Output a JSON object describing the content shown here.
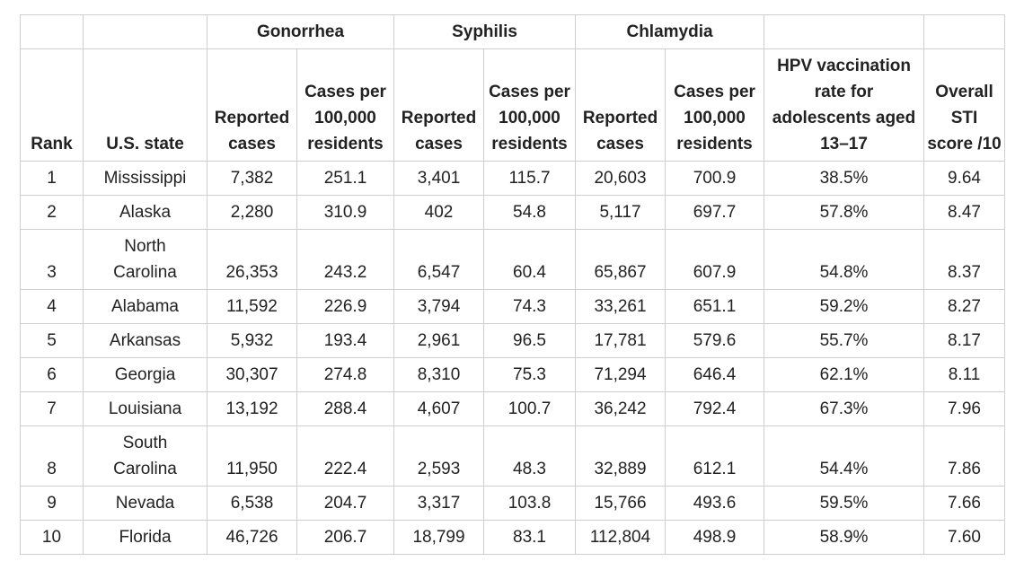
{
  "header": {
    "groups": [
      "Gonorrhea",
      "Syphilis",
      "Chlamydia"
    ],
    "columns": [
      "Rank",
      "U.S. state",
      "Reported cases",
      "Cases per 100,000 residents",
      "Reported cases",
      "Cases per 100,000 residents",
      "Reported cases",
      "Cases per 100,000 residents",
      "HPV vaccination rate for adolescents aged 13–17",
      "Overall STI score /10"
    ]
  },
  "table": {
    "rows": [
      [
        "1",
        "Mississippi",
        "7,382",
        "251.1",
        "3,401",
        "115.7",
        "20,603",
        "700.9",
        "38.5%",
        "9.64"
      ],
      [
        "2",
        "Alaska",
        "2,280",
        "310.9",
        "402",
        "54.8",
        "5,117",
        "697.7",
        "57.8%",
        "8.47"
      ],
      [
        "3",
        "North Carolina",
        "26,353",
        "243.2",
        "6,547",
        "60.4",
        "65,867",
        "607.9",
        "54.8%",
        "8.37"
      ],
      [
        "4",
        "Alabama",
        "11,592",
        "226.9",
        "3,794",
        "74.3",
        "33,261",
        "651.1",
        "59.2%",
        "8.27"
      ],
      [
        "5",
        "Arkansas",
        "5,932",
        "193.4",
        "2,961",
        "96.5",
        "17,781",
        "579.6",
        "55.7%",
        "8.17"
      ],
      [
        "6",
        "Georgia",
        "30,307",
        "274.8",
        "8,310",
        "75.3",
        "71,294",
        "646.4",
        "62.1%",
        "8.11"
      ],
      [
        "7",
        "Louisiana",
        "13,192",
        "288.4",
        "4,607",
        "100.7",
        "36,242",
        "792.4",
        "67.3%",
        "7.96"
      ],
      [
        "8",
        "South Carolina",
        "11,950",
        "222.4",
        "2,593",
        "48.3",
        "32,889",
        "612.1",
        "54.4%",
        "7.86"
      ],
      [
        "9",
        "Nevada",
        "6,538",
        "204.7",
        "3,317",
        "103.8",
        "15,766",
        "493.6",
        "59.5%",
        "7.66"
      ],
      [
        "10",
        "Florida",
        "46,726",
        "206.7",
        "18,799",
        "83.1",
        "112,804",
        "498.9",
        "58.9%",
        "7.60"
      ]
    ]
  }
}
